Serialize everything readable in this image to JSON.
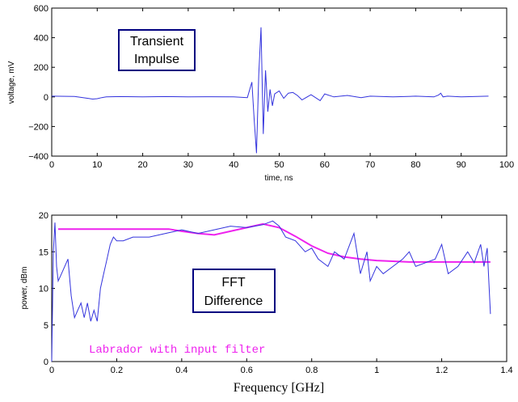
{
  "colors": {
    "trace": "#3333dd",
    "filter": "#ee22ee",
    "box": "#000080"
  },
  "chart_data": [
    {
      "type": "line",
      "xlabel": "time, ns",
      "ylabel": "voltage, mV",
      "xlim": [
        0,
        100
      ],
      "ylim": [
        -400,
        600
      ],
      "xticks": [
        "0",
        "10",
        "20",
        "30",
        "40",
        "50",
        "60",
        "70",
        "80",
        "90",
        "100"
      ],
      "yticks": [
        "−400",
        "−200",
        "0",
        "200",
        "400",
        "600"
      ],
      "annotation": [
        "Transient",
        "Impulse"
      ],
      "series": [
        {
          "x": [
            0,
            5,
            8,
            9,
            10,
            11,
            12,
            15,
            20,
            25,
            30,
            35,
            40,
            43,
            44,
            44.5,
            45,
            45.5,
            46,
            46.5,
            47,
            47.5,
            48,
            48.5,
            49,
            50,
            51,
            52,
            53,
            54,
            55,
            57,
            59,
            60,
            62,
            65,
            68,
            70,
            75,
            80,
            84,
            85,
            85.5,
            86,
            87,
            90,
            96
          ],
          "y": [
            5,
            3,
            -10,
            -15,
            -12,
            -5,
            0,
            2,
            0,
            2,
            0,
            1,
            0,
            -5,
            100,
            -150,
            -380,
            150,
            470,
            -250,
            180,
            -100,
            50,
            -60,
            20,
            40,
            -10,
            25,
            30,
            10,
            -20,
            15,
            -25,
            20,
            0,
            10,
            -5,
            5,
            0,
            5,
            0,
            12,
            25,
            0,
            5,
            0,
            5
          ]
        }
      ]
    },
    {
      "type": "line",
      "xlabel": "Frequency [GHz]",
      "ylabel": "power, dBm",
      "xlim": [
        0,
        1.4
      ],
      "ylim": [
        0,
        20
      ],
      "xticks": [
        "0",
        "0.2",
        "0.4",
        "0.6",
        "0.8",
        "1",
        "1.2",
        "1.4"
      ],
      "yticks": [
        "0",
        "5",
        "10",
        "15",
        "20"
      ],
      "annotation": [
        "FFT",
        "Difference"
      ],
      "legend_text": "Labrador with input filter",
      "series": [
        {
          "x": [
            0.0,
            0.005,
            0.01,
            0.015,
            0.02,
            0.03,
            0.05,
            0.06,
            0.07,
            0.08,
            0.09,
            0.1,
            0.11,
            0.12,
            0.13,
            0.14,
            0.15,
            0.16,
            0.17,
            0.18,
            0.19,
            0.2,
            0.22,
            0.25,
            0.3,
            0.35,
            0.4,
            0.45,
            0.5,
            0.55,
            0.6,
            0.65,
            0.68,
            0.7,
            0.72,
            0.75,
            0.78,
            0.8,
            0.82,
            0.85,
            0.87,
            0.9,
            0.93,
            0.95,
            0.97,
            0.98,
            1.0,
            1.02,
            1.05,
            1.08,
            1.1,
            1.12,
            1.15,
            1.18,
            1.2,
            1.22,
            1.25,
            1.28,
            1.3,
            1.32,
            1.33,
            1.34,
            1.35
          ],
          "y": [
            0,
            15,
            19,
            13,
            11,
            12,
            14,
            9,
            6,
            7,
            8,
            6,
            8,
            5.5,
            7,
            5.5,
            10,
            12,
            14,
            16,
            17,
            16.5,
            16.5,
            17,
            17,
            17.5,
            18,
            17.5,
            18,
            18.5,
            18.3,
            18.7,
            19.2,
            18.5,
            17,
            16.5,
            15,
            15.5,
            14,
            13,
            15,
            14,
            17.5,
            12,
            15,
            11,
            13,
            12,
            13,
            14,
            15,
            13,
            13.5,
            14,
            16,
            12,
            13,
            15,
            13.5,
            16,
            13,
            15.5,
            6.5
          ]
        },
        {
          "x": [
            0.02,
            0.1,
            0.2,
            0.3,
            0.36,
            0.4,
            0.45,
            0.5,
            0.55,
            0.6,
            0.65,
            0.7,
            0.75,
            0.8,
            0.85,
            0.9,
            0.95,
            1.0,
            1.05,
            1.1,
            1.15,
            1.2,
            1.25,
            1.3,
            1.35
          ],
          "y": [
            18.1,
            18.1,
            18.1,
            18.1,
            18.1,
            17.8,
            17.5,
            17.3,
            17.8,
            18.3,
            18.8,
            18.3,
            17.1,
            15.8,
            14.8,
            14.3,
            14.0,
            13.8,
            13.7,
            13.6,
            13.6,
            13.6,
            13.6,
            13.6,
            13.6
          ]
        }
      ]
    }
  ]
}
